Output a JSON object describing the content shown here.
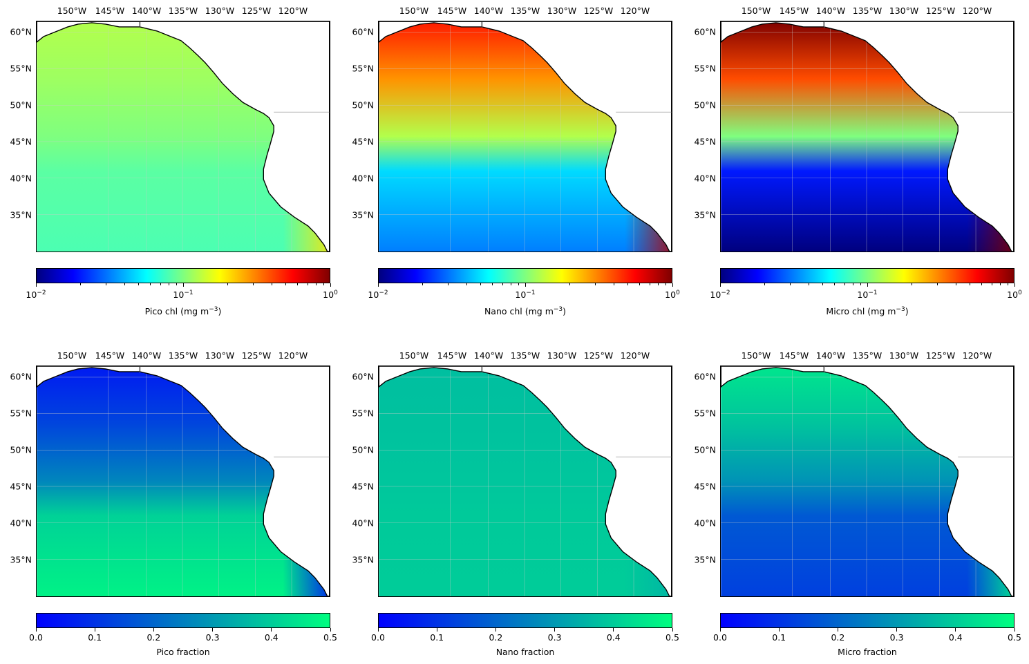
{
  "lon_ticks": [
    "150°W",
    "145°W",
    "140°W",
    "135°W",
    "130°W",
    "125°W",
    "120°W"
  ],
  "lat_ticks": [
    "60°N",
    "55°N",
    "50°N",
    "45°N",
    "40°N",
    "35°N"
  ],
  "panels": [
    {
      "id": "pico-chl",
      "colorbar_label": "Pico chl (mg m",
      "colorbar_label_sup": "−3",
      "colorbar_label_end": ")",
      "cmap": "jet",
      "scale": "log",
      "tick_base": "10",
      "tick_exps": [
        "−2",
        "−1",
        "0"
      ],
      "severity": [
        0.45,
        0.55
      ]
    },
    {
      "id": "nano-chl",
      "colorbar_label": "Nano chl (mg m",
      "colorbar_label_sup": "−3",
      "colorbar_label_end": ")",
      "cmap": "jet",
      "scale": "log",
      "tick_base": "10",
      "tick_exps": [
        "−2",
        "−1",
        "0"
      ],
      "severity": [
        0.25,
        0.85
      ]
    },
    {
      "id": "micro-chl",
      "colorbar_label": "Micro chl (mg m",
      "colorbar_label_sup": "−3",
      "colorbar_label_end": ")",
      "cmap": "jet",
      "scale": "log",
      "tick_base": "10",
      "tick_exps": [
        "−2",
        "−1",
        "0"
      ],
      "severity": [
        0.0,
        1.0
      ]
    },
    {
      "id": "pico-fraction",
      "colorbar_label": "Pico fraction",
      "cmap": "winter",
      "scale": "linear",
      "ticks": [
        "0.0",
        "0.1",
        "0.2",
        "0.3",
        "0.4",
        "0.5"
      ],
      "severity": [
        0.95,
        0.1
      ]
    },
    {
      "id": "nano-fraction",
      "colorbar_label": "Nano fraction",
      "cmap": "winter",
      "scale": "linear",
      "ticks": [
        "0.0",
        "0.1",
        "0.2",
        "0.3",
        "0.4",
        "0.5"
      ],
      "severity": [
        0.8,
        0.75
      ]
    },
    {
      "id": "micro-fraction",
      "colorbar_label": "Micro fraction",
      "cmap": "winter",
      "scale": "linear",
      "ticks": [
        "0.0",
        "0.1",
        "0.2",
        "0.3",
        "0.4",
        "0.5"
      ],
      "severity": [
        0.25,
        0.9
      ]
    }
  ],
  "colors": {
    "jet": [
      "#00007f",
      "#0000ff",
      "#007fff",
      "#00ffff",
      "#7fff7f",
      "#ffff00",
      "#ff7f00",
      "#ff0000",
      "#7f0000"
    ],
    "winter": [
      "#0000ff",
      "#00ff80"
    ],
    "land": "#ffffff",
    "coast": "#000000",
    "grid": "#cccccc"
  }
}
